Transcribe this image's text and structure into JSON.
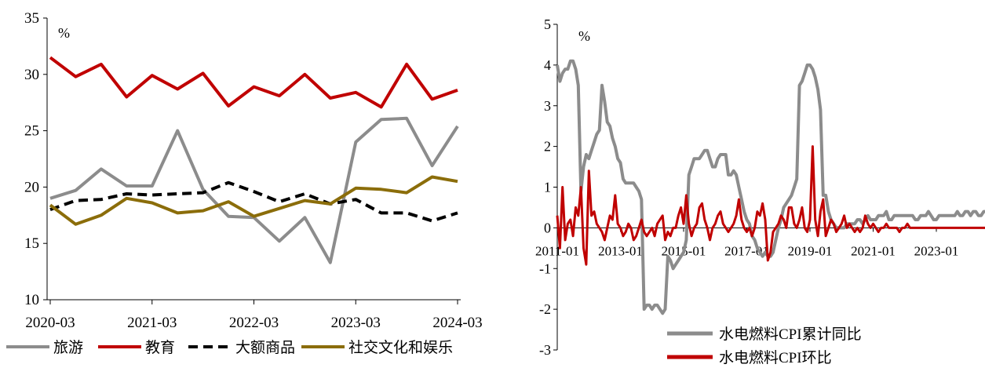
{
  "chart_data": [
    {
      "type": "line",
      "unit_label": "%",
      "ylim": [
        10,
        35
      ],
      "yticks": [
        "10",
        "15",
        "20",
        "25",
        "30",
        "35"
      ],
      "xticks": [
        "2020-03",
        "2021-03",
        "2022-03",
        "2023-03",
        "2024-03"
      ],
      "x": [
        "2020-03",
        "2020-06",
        "2020-09",
        "2020-12",
        "2021-03",
        "2021-06",
        "2021-09",
        "2021-12",
        "2022-03",
        "2022-06",
        "2022-09",
        "2022-12",
        "2023-03",
        "2023-06",
        "2023-09",
        "2023-12",
        "2024-03"
      ],
      "grid": false,
      "legend_position": "bottom",
      "series": [
        {
          "name": "旅游",
          "color": "#8c8c8c",
          "style": "solid",
          "values": [
            19.0,
            19.7,
            21.6,
            20.1,
            20.1,
            25.0,
            19.8,
            17.4,
            17.3,
            15.2,
            17.3,
            13.3,
            24.0,
            26.0,
            26.1,
            21.9,
            25.4
          ]
        },
        {
          "name": "教育",
          "color": "#c00000",
          "style": "solid",
          "values": [
            31.5,
            29.8,
            30.9,
            28.0,
            29.9,
            28.7,
            30.1,
            27.2,
            28.9,
            28.1,
            30.0,
            27.9,
            28.4,
            27.1,
            30.9,
            27.8,
            28.6
          ]
        },
        {
          "name": "大额商品",
          "color": "#000000",
          "style": "dashed",
          "values": [
            18.0,
            18.8,
            18.9,
            19.4,
            19.3,
            19.4,
            19.5,
            20.4,
            19.6,
            18.7,
            19.4,
            18.5,
            18.9,
            17.7,
            17.7,
            17.0,
            17.7
          ]
        },
        {
          "name": "社交文化和娱乐",
          "color": "#8b6d0a",
          "style": "solid",
          "values": [
            18.4,
            16.7,
            17.5,
            19.0,
            18.6,
            17.7,
            17.9,
            18.7,
            17.4,
            18.1,
            18.8,
            18.5,
            19.9,
            19.8,
            19.5,
            20.9,
            20.5
          ]
        }
      ]
    },
    {
      "type": "line",
      "unit_label": "%",
      "ylim": [
        -3,
        5
      ],
      "yticks": [
        "-3",
        "-2",
        "-1",
        "0",
        "1",
        "2",
        "3",
        "4",
        "5"
      ],
      "xticks": [
        "2011-01",
        "2013-01",
        "2015-01",
        "2017-01",
        "2019-01",
        "2021-01",
        "2023-01"
      ],
      "x_start": "2011-01",
      "x_end": "2024-12",
      "grid": false,
      "legend_position": "bottom",
      "series": [
        {
          "name": "水电燃料CPI累计同比",
          "color": "#8c8c8c",
          "style": "solid",
          "values": [
            4.0,
            3.6,
            3.8,
            3.9,
            3.9,
            4.1,
            4.1,
            3.9,
            3.5,
            0.9,
            1.5,
            1.8,
            1.7,
            1.9,
            2.1,
            2.3,
            2.4,
            3.5,
            3.1,
            2.6,
            2.5,
            2.2,
            2.0,
            1.7,
            1.6,
            1.2,
            1.1,
            1.1,
            1.1,
            1.1,
            1.0,
            0.9,
            0.7,
            -2.0,
            -1.9,
            -1.9,
            -2.0,
            -1.9,
            -1.9,
            -2.0,
            -2.1,
            -2.0,
            -0.7,
            -0.8,
            -1.0,
            -0.9,
            -0.8,
            -0.7,
            -0.6,
            -0.3,
            1.3,
            1.5,
            1.7,
            1.7,
            1.7,
            1.8,
            1.9,
            1.9,
            1.7,
            1.5,
            1.5,
            1.7,
            1.8,
            1.8,
            1.8,
            1.3,
            1.3,
            1.4,
            1.3,
            1.0,
            0.7,
            0.4,
            0.2,
            0.1,
            -0.2,
            -0.3,
            -0.5,
            -0.6,
            -0.7,
            -0.6,
            -0.7,
            -0.7,
            -0.6,
            -0.3,
            0.0,
            0.2,
            0.5,
            0.6,
            0.7,
            0.8,
            1.0,
            1.2,
            3.5,
            3.6,
            3.8,
            4.0,
            4.0,
            3.9,
            3.7,
            3.4,
            2.9,
            0.8,
            0.8,
            0.4,
            0.2,
            0.1,
            0.0,
            0.0,
            0.0,
            0.0,
            0.1,
            0.1,
            0.1,
            0.1,
            0.2,
            0.2,
            0.1,
            0.2,
            0.3,
            0.2,
            0.2,
            0.2,
            0.3,
            0.3,
            0.3,
            0.4,
            0.2,
            0.2,
            0.3,
            0.3,
            0.3,
            0.3,
            0.3,
            0.3,
            0.3,
            0.3,
            0.2,
            0.2,
            0.3,
            0.3,
            0.3,
            0.4,
            0.3,
            0.2,
            0.2,
            0.3,
            0.3,
            0.3,
            0.3,
            0.3,
            0.3,
            0.3,
            0.4,
            0.3,
            0.3,
            0.4,
            0.4,
            0.3,
            0.4,
            0.4,
            0.3,
            0.3,
            0.4,
            0.4
          ]
        },
        {
          "name": "水电燃料CPI环比",
          "color": "#c00000",
          "style": "solid",
          "values": [
            0.3,
            -0.5,
            1.0,
            -0.3,
            0.1,
            0.2,
            -0.2,
            0.5,
            0.3,
            1.0,
            -0.5,
            -0.9,
            1.4,
            0.3,
            0.4,
            0.1,
            0.0,
            -0.1,
            -0.3,
            0.0,
            0.3,
            0.2,
            0.8,
            0.1,
            0.0,
            -0.2,
            -0.1,
            0.1,
            0.0,
            -0.3,
            -0.2,
            0.0,
            0.2,
            -0.1,
            -0.2,
            -0.1,
            0.0,
            -0.2,
            0.1,
            0.2,
            0.3,
            -0.3,
            -0.1,
            -0.2,
            0.0,
            0.0,
            0.3,
            0.5,
            0.1,
            0.8,
            0.1,
            -0.2,
            0.0,
            0.1,
            0.5,
            0.6,
            0.2,
            0.0,
            -0.3,
            0.0,
            0.1,
            0.3,
            0.4,
            0.1,
            0.0,
            -0.1,
            0.0,
            0.1,
            0.3,
            0.7,
            0.2,
            0.0,
            -0.1,
            0.0,
            -0.2,
            0.0,
            0.4,
            0.3,
            0.6,
            0.2,
            -0.8,
            -0.6,
            -0.1,
            0.0,
            0.1,
            0.3,
            0.2,
            0.0,
            0.5,
            0.5,
            0.1,
            0.0,
            0.2,
            0.5,
            0.0,
            -0.1,
            0.2,
            2.0,
            0.2,
            -0.2,
            0.4,
            0.7,
            -0.2,
            0.0,
            0.2,
            0.1,
            -0.1,
            0.0,
            0.1,
            0.3,
            0.0,
            0.1,
            0.0,
            -0.1,
            0.0,
            -0.1,
            0.0,
            0.3,
            0.1,
            0.0,
            0.1,
            0.0,
            -0.1,
            0.0,
            0.0,
            0.1,
            0.0,
            0.0,
            0.0,
            0.0,
            -0.1,
            0.0,
            0.0,
            0.1,
            0.0,
            0.0,
            0.0,
            0.0,
            0.0,
            0.0,
            0.0,
            0.0,
            0.0,
            0.0,
            0.0,
            0.0,
            0.0,
            0.0,
            0.0,
            0.0,
            0.0,
            0.0,
            0.0,
            0.0,
            0.0,
            0.0,
            0.0,
            0.0,
            0.0,
            0.0,
            0.0,
            0.0,
            0.0,
            0.0,
            0.0
          ]
        }
      ]
    }
  ]
}
